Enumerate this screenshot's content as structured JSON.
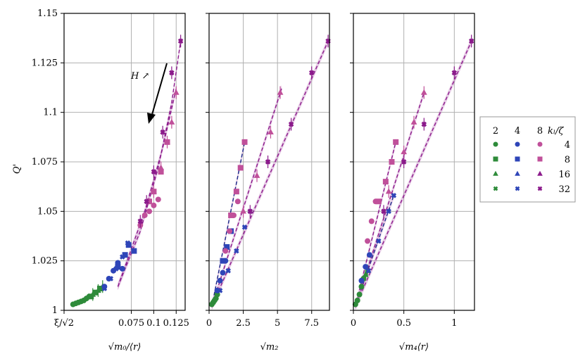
{
  "chart_data": {
    "type": "scatter",
    "ylabel": "Q'",
    "ylim": [
      1.0,
      1.15
    ],
    "yticks": [
      1,
      1.025,
      1.05,
      1.075,
      1.1,
      1.125,
      1.15
    ],
    "ytick_labels": [
      "1",
      "1.025",
      "1.05",
      "1.075",
      "1.1",
      "1.125",
      "1.15"
    ],
    "grid": true,
    "colors": {
      "2": "#2e8b3a",
      "4": "#2e45b8",
      "8": "#c0509a",
      "32": "#8b1a8b"
    },
    "panels": [
      {
        "xlabel": "√m₀/⟨r⟩",
        "xlim": [
          0.0,
          0.135
        ],
        "xticks": [
          0.0,
          0.075,
          0.1,
          0.125
        ],
        "xtick_labels": [
          "ξ/√2",
          "0.075",
          "0.1",
          "0.125"
        ],
        "annotation": "H ↗",
        "fits": [
          {
            "x": [
              0.06,
              0.085,
              0.105,
              0.12,
              0.13
            ],
            "y": [
              1.012,
              1.04,
              1.072,
              1.105,
              1.136
            ]
          },
          {
            "x": [
              0.06,
              0.09,
              0.11,
              0.125
            ],
            "y": [
              1.012,
              1.05,
              1.082,
              1.112
            ]
          }
        ],
        "series": [
          {
            "k": "2",
            "marker": "circle",
            "x": [
              0.01,
              0.013,
              0.016,
              0.019,
              0.022,
              0.025,
              0.028
            ],
            "y": [
              1.003,
              1.0035,
              1.004,
              1.0045,
              1.005,
              1.006,
              1.007
            ]
          },
          {
            "k": "2",
            "marker": "square",
            "x": [
              0.03,
              0.035,
              0.04
            ],
            "y": [
              1.007,
              1.009,
              1.011
            ]
          },
          {
            "k": "2",
            "marker": "triangle",
            "x": [
              0.032,
              0.038,
              0.043
            ],
            "y": [
              1.008,
              1.01,
              1.012
            ]
          },
          {
            "k": "4",
            "marker": "circle",
            "x": [
              0.045,
              0.05,
              0.055,
              0.06,
              0.065
            ],
            "y": [
              1.012,
              1.016,
              1.02,
              1.024,
              1.021
            ]
          },
          {
            "k": "4",
            "marker": "square",
            "x": [
              0.06,
              0.068,
              0.072,
              0.078
            ],
            "y": [
              1.022,
              1.028,
              1.033,
              1.03
            ]
          },
          {
            "k": "4",
            "marker": "cross",
            "x": [
              0.045,
              0.052,
              0.058,
              0.065,
              0.071
            ],
            "y": [
              1.011,
              1.016,
              1.021,
              1.027,
              1.034
            ]
          },
          {
            "k": "8",
            "marker": "circle",
            "x": [
              0.085,
              0.09,
              0.095,
              0.1,
              0.105
            ],
            "y": [
              1.043,
              1.048,
              1.05,
              1.053,
              1.056
            ]
          },
          {
            "k": "8",
            "marker": "square",
            "x": [
              0.095,
              0.1,
              0.108,
              0.115
            ],
            "y": [
              1.055,
              1.06,
              1.07,
              1.085
            ]
          },
          {
            "k": "8",
            "marker": "triangle",
            "x": [
              0.1,
              0.108,
              0.115,
              0.12,
              0.125
            ],
            "y": [
              1.06,
              1.072,
              1.085,
              1.095,
              1.11
            ]
          },
          {
            "k": "32",
            "marker": "cross",
            "x": [
              0.085,
              0.092,
              0.1,
              0.11,
              0.12,
              0.13
            ],
            "y": [
              1.045,
              1.055,
              1.07,
              1.09,
              1.12,
              1.136
            ]
          }
        ]
      },
      {
        "xlabel": "√m₂",
        "xlim": [
          0.0,
          8.8
        ],
        "xticks": [
          0,
          2.5,
          5,
          7.5
        ],
        "xtick_labels": [
          "0",
          "2.5",
          "5",
          "7.5"
        ],
        "fits": [
          {
            "x": [
              0.2,
              2.6
            ],
            "y": [
              1.002,
              1.085
            ]
          },
          {
            "x": [
              0.2,
              5.3
            ],
            "y": [
              1.002,
              1.112
            ]
          },
          {
            "x": [
              0.2,
              8.7
            ],
            "y": [
              1.002,
              1.136
            ]
          }
        ],
        "series": [
          {
            "k": "2",
            "marker": "circle",
            "x": [
              0.2,
              0.3,
              0.4,
              0.5,
              0.6
            ],
            "y": [
              1.003,
              1.004,
              1.005,
              1.006,
              1.008
            ]
          },
          {
            "k": "4",
            "marker": "circle",
            "x": [
              0.6,
              0.8,
              1.0,
              1.2
            ],
            "y": [
              1.01,
              1.015,
              1.019,
              1.025
            ]
          },
          {
            "k": "4",
            "marker": "square",
            "x": [
              1.0,
              1.3,
              1.6
            ],
            "y": [
              1.025,
              1.032,
              1.04
            ]
          },
          {
            "k": "4",
            "marker": "cross",
            "x": [
              0.8,
              1.4,
              2.0,
              2.6,
              3.0
            ],
            "y": [
              1.01,
              1.02,
              1.03,
              1.042,
              1.05
            ]
          },
          {
            "k": "8",
            "marker": "circle",
            "x": [
              1.2,
              1.5,
              1.8,
              2.1
            ],
            "y": [
              1.03,
              1.04,
              1.048,
              1.055
            ]
          },
          {
            "k": "8",
            "marker": "square",
            "x": [
              1.6,
              2.0,
              2.3,
              2.6
            ],
            "y": [
              1.048,
              1.06,
              1.072,
              1.085
            ]
          },
          {
            "k": "8",
            "marker": "triangle",
            "x": [
              2.5,
              3.5,
              4.5,
              5.2
            ],
            "y": [
              1.05,
              1.068,
              1.09,
              1.11
            ]
          },
          {
            "k": "32",
            "marker": "cross",
            "x": [
              3.0,
              4.3,
              6.0,
              7.5,
              8.7
            ],
            "y": [
              1.05,
              1.075,
              1.094,
              1.12,
              1.136
            ]
          }
        ]
      },
      {
        "xlabel": "√m₄⟨r⟩",
        "xlim": [
          0.0,
          1.2
        ],
        "xticks": [
          0,
          0.5,
          1
        ],
        "xtick_labels": [
          "0",
          "0.5",
          "1"
        ],
        "fits": [
          {
            "x": [
              0.02,
              0.4
            ],
            "y": [
              1.002,
              1.058
            ]
          },
          {
            "x": [
              0.02,
              0.42
            ],
            "y": [
              1.002,
              1.085
            ]
          },
          {
            "x": [
              0.02,
              0.7
            ],
            "y": [
              1.002,
              1.11
            ]
          },
          {
            "x": [
              0.02,
              1.17
            ],
            "y": [
              1.002,
              1.136
            ]
          }
        ],
        "series": [
          {
            "k": "2",
            "marker": "circle",
            "x": [
              0.02,
              0.04,
              0.06,
              0.08,
              0.1
            ],
            "y": [
              1.003,
              1.005,
              1.008,
              1.012,
              1.016
            ]
          },
          {
            "k": "2",
            "marker": "triangle",
            "x": [
              0.12,
              0.14
            ],
            "y": [
              1.018,
              1.02
            ]
          },
          {
            "k": "4",
            "marker": "circle",
            "x": [
              0.08,
              0.12,
              0.16
            ],
            "y": [
              1.015,
              1.022,
              1.028
            ]
          },
          {
            "k": "4",
            "marker": "cross",
            "x": [
              0.15,
              0.25,
              0.35,
              0.4
            ],
            "y": [
              1.02,
              1.035,
              1.05,
              1.058
            ]
          },
          {
            "k": "8",
            "marker": "circle",
            "x": [
              0.14,
              0.18,
              0.22
            ],
            "y": [
              1.035,
              1.045,
              1.055
            ]
          },
          {
            "k": "8",
            "marker": "square",
            "x": [
              0.25,
              0.32,
              0.38,
              0.42
            ],
            "y": [
              1.055,
              1.065,
              1.075,
              1.085
            ]
          },
          {
            "k": "8",
            "marker": "triangle",
            "x": [
              0.35,
              0.5,
              0.6,
              0.7
            ],
            "y": [
              1.06,
              1.08,
              1.095,
              1.11
            ]
          },
          {
            "k": "32",
            "marker": "cross",
            "x": [
              0.3,
              0.5,
              0.7,
              1.0,
              1.17
            ],
            "y": [
              1.05,
              1.075,
              1.094,
              1.12,
              1.136
            ]
          }
        ]
      }
    ],
    "legend": {
      "location": "right",
      "column_headers": [
        "2",
        "4",
        "8"
      ],
      "corner_label": "kₗ/ζ",
      "row_labels": [
        "4",
        "8",
        "16",
        "32"
      ],
      "row_markers": [
        "circle",
        "square",
        "triangle",
        "cross"
      ]
    }
  }
}
